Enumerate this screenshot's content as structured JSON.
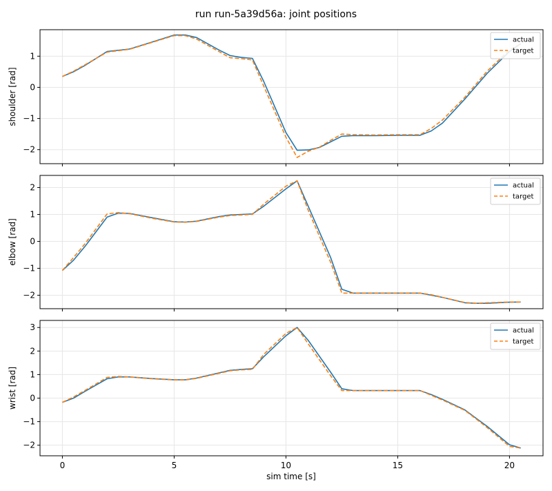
{
  "chart_data": {
    "type": "line",
    "title": "run run-5a39d56a: joint positions",
    "xlabel": "sim time [s]",
    "xlim": [
      -1.0,
      21.5
    ],
    "xticks": [
      0,
      5,
      10,
      15,
      20
    ],
    "xtick_labels": [
      "0",
      "5",
      "10",
      "15",
      "20"
    ],
    "grid": true,
    "legend_placement": "top-right",
    "series_styles": {
      "actual": {
        "color": "#1f77b4",
        "dash": "solid"
      },
      "target": {
        "color": "#ff7f0e",
        "dash": "dashed"
      }
    },
    "panels": [
      {
        "ylabel": "shoulder [rad]",
        "ylim": [
          -2.45,
          1.85
        ],
        "yticks": [
          -2,
          -1,
          0,
          1
        ],
        "ytick_labels": [
          "−2",
          "−1",
          "0",
          "1"
        ],
        "series": [
          {
            "name": "actual",
            "x": [
              0,
              0.5,
              1,
              2,
              3,
              4,
              5,
              5.5,
              6,
              7,
              7.5,
              8,
              8.5,
              9,
              10,
              10.5,
              11,
              11.5,
              12,
              12.5,
              13,
              14,
              15,
              16,
              16.5,
              17,
              18,
              19,
              20,
              20.5
            ],
            "y": [
              0.35,
              0.5,
              0.7,
              1.15,
              1.23,
              1.45,
              1.68,
              1.68,
              1.6,
              1.2,
              1.02,
              0.96,
              0.93,
              0.2,
              -1.45,
              -2.02,
              -2.01,
              -1.93,
              -1.75,
              -1.57,
              -1.55,
              -1.55,
              -1.54,
              -1.54,
              -1.4,
              -1.15,
              -0.38,
              0.45,
              1.15,
              1.4
            ]
          },
          {
            "name": "target",
            "x": [
              0,
              0.5,
              1,
              2,
              3,
              4,
              5,
              5.5,
              6,
              7,
              7.5,
              8,
              8.5,
              9,
              10,
              10.5,
              11,
              11.5,
              12,
              12.5,
              13,
              14,
              15,
              16,
              16.5,
              17,
              18,
              19,
              20,
              20.5
            ],
            "y": [
              0.35,
              0.52,
              0.72,
              1.13,
              1.22,
              1.44,
              1.66,
              1.66,
              1.55,
              1.15,
              0.95,
              0.92,
              0.88,
              0.05,
              -1.6,
              -2.25,
              -2.05,
              -1.92,
              -1.7,
              -1.5,
              -1.52,
              -1.53,
              -1.52,
              -1.52,
              -1.32,
              -1.05,
              -0.32,
              0.52,
              1.2,
              1.4
            ]
          }
        ]
      },
      {
        "ylabel": "elbow [rad]",
        "ylim": [
          -2.5,
          2.45
        ],
        "yticks": [
          -2,
          -1,
          0,
          1,
          2
        ],
        "ytick_labels": [
          "−2",
          "−1",
          "0",
          "1",
          "2"
        ],
        "series": [
          {
            "name": "actual",
            "x": [
              0,
              0.5,
              1,
              2,
              2.5,
              3,
              4,
              5,
              5.5,
              6,
              7,
              7.5,
              8,
              8.5,
              9,
              10,
              10.5,
              11,
              12,
              12.5,
              13,
              14,
              15,
              16,
              16.5,
              17,
              18,
              18.5,
              19,
              20,
              20.5
            ],
            "y": [
              -1.08,
              -0.7,
              -0.2,
              0.9,
              1.05,
              1.04,
              0.88,
              0.73,
              0.72,
              0.75,
              0.92,
              0.98,
              1.0,
              1.02,
              1.3,
              1.95,
              2.25,
              1.3,
              -0.6,
              -1.78,
              -1.92,
              -1.92,
              -1.92,
              -1.92,
              -2.0,
              -2.08,
              -2.28,
              -2.3,
              -2.3,
              -2.26,
              -2.25
            ]
          },
          {
            "name": "target",
            "x": [
              0,
              0.5,
              1,
              2,
              2.5,
              3,
              4,
              5,
              5.5,
              6,
              7,
              7.5,
              8,
              8.5,
              9,
              10,
              10.5,
              11,
              12,
              12.5,
              13,
              14,
              15,
              16,
              16.5,
              17,
              18,
              18.5,
              19,
              20,
              20.5
            ],
            "y": [
              -1.08,
              -0.6,
              -0.1,
              1.02,
              1.07,
              1.03,
              0.86,
              0.72,
              0.71,
              0.74,
              0.9,
              0.96,
              0.98,
              1.0,
              1.38,
              2.05,
              2.25,
              1.15,
              -0.78,
              -1.92,
              -1.92,
              -1.92,
              -1.92,
              -1.92,
              -1.98,
              -2.08,
              -2.27,
              -2.3,
              -2.28,
              -2.25,
              -2.25
            ]
          }
        ]
      },
      {
        "ylabel": "wrist [rad]",
        "ylim": [
          -2.45,
          3.3
        ],
        "yticks": [
          -2,
          -1,
          0,
          1,
          2,
          3
        ],
        "ytick_labels": [
          "−2",
          "−1",
          "0",
          "1",
          "2",
          "3"
        ],
        "series": [
          {
            "name": "actual",
            "x": [
              0,
              0.5,
              1,
              2,
              2.5,
              3,
              4,
              5,
              5.5,
              6,
              7,
              7.5,
              8,
              8.5,
              9,
              10,
              10.5,
              11,
              12,
              12.5,
              13,
              14,
              15,
              16,
              16.5,
              17,
              18,
              18.5,
              19,
              20,
              20.5
            ],
            "y": [
              -0.18,
              0.0,
              0.28,
              0.82,
              0.9,
              0.9,
              0.83,
              0.78,
              0.78,
              0.85,
              1.07,
              1.18,
              1.22,
              1.25,
              1.75,
              2.65,
              3.0,
              2.45,
              1.1,
              0.4,
              0.32,
              0.32,
              0.32,
              0.32,
              0.15,
              -0.05,
              -0.5,
              -0.85,
              -1.2,
              -1.98,
              -2.12
            ]
          },
          {
            "name": "target",
            "x": [
              0,
              0.5,
              1,
              2,
              2.5,
              3,
              4,
              5,
              5.5,
              6,
              7,
              7.5,
              8,
              8.5,
              9,
              10,
              10.5,
              11,
              12,
              12.5,
              13,
              14,
              15,
              16,
              16.5,
              17,
              18,
              18.5,
              19,
              20,
              20.5
            ],
            "y": [
              -0.18,
              0.05,
              0.32,
              0.88,
              0.92,
              0.9,
              0.82,
              0.77,
              0.77,
              0.84,
              1.05,
              1.16,
              1.2,
              1.22,
              1.85,
              2.75,
              3.0,
              2.3,
              0.95,
              0.32,
              0.32,
              0.32,
              0.32,
              0.32,
              0.12,
              -0.08,
              -0.52,
              -0.88,
              -1.25,
              -2.05,
              -2.12
            ]
          }
        ]
      }
    ]
  }
}
